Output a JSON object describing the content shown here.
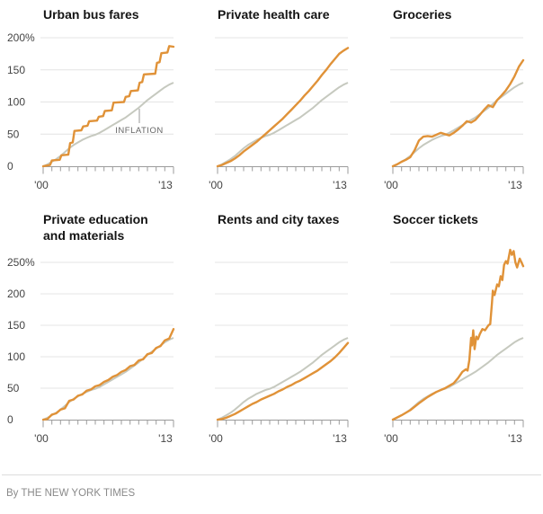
{
  "page": {
    "credit": "By THE NEW YORK TIMES"
  },
  "colors": {
    "background": "#ffffff",
    "category_line": "#e09238",
    "inflation_line": "#c6c9bf",
    "gridline": "#e4e4e4",
    "axis": "#9b9b9b",
    "callout_line": "#999999",
    "title_text": "#141414",
    "axis_label_text": "#444444",
    "annotation_text": "#666666",
    "credit_text": "#8a8a8a"
  },
  "chart_data": {
    "type": "line",
    "x_range": [
      2000,
      2015
    ],
    "x_tick_interval_years": 1,
    "x_tick_labels": [
      "'00",
      "'13"
    ],
    "grid": "horizontal-only",
    "legend": {
      "inflation_label": "INFLATION",
      "position": "annotation-in-first-chart"
    },
    "inflation_series": {
      "name": "INFLATION",
      "points": [
        [
          2000,
          0
        ],
        [
          2000.5,
          3
        ],
        [
          2001,
          7
        ],
        [
          2001.5,
          11
        ],
        [
          2002,
          16
        ],
        [
          2002.5,
          22
        ],
        [
          2003,
          28
        ],
        [
          2003.5,
          33
        ],
        [
          2004,
          37
        ],
        [
          2004.5,
          41
        ],
        [
          2005,
          44
        ],
        [
          2005.5,
          47
        ],
        [
          2006,
          49
        ],
        [
          2006.5,
          52
        ],
        [
          2007,
          56
        ],
        [
          2007.5,
          60
        ],
        [
          2008,
          64
        ],
        [
          2008.5,
          68
        ],
        [
          2009,
          72
        ],
        [
          2009.5,
          76
        ],
        [
          2010,
          81
        ],
        [
          2010.5,
          86
        ],
        [
          2011,
          91
        ],
        [
          2011.5,
          97
        ],
        [
          2012,
          103
        ],
        [
          2012.5,
          108
        ],
        [
          2013,
          113
        ],
        [
          2013.5,
          118
        ],
        [
          2014,
          123
        ],
        [
          2014.5,
          127
        ],
        [
          2015,
          130
        ]
      ]
    },
    "charts": [
      {
        "title_lines": [
          "Urban bus fares"
        ],
        "ymax": 200,
        "y_tick_step": 50,
        "y_tick_labels": [
          "200%",
          "150",
          "100",
          "50",
          "0"
        ],
        "annotation": "INFLATION",
        "series_points": [
          [
            2000,
            0
          ],
          [
            2000.8,
            2
          ],
          [
            2001,
            9
          ],
          [
            2001.9,
            10
          ],
          [
            2002.1,
            17
          ],
          [
            2002.9,
            18
          ],
          [
            2003.1,
            36
          ],
          [
            2003.4,
            37
          ],
          [
            2003.6,
            55
          ],
          [
            2004.4,
            56
          ],
          [
            2004.6,
            62
          ],
          [
            2005.1,
            63
          ],
          [
            2005.3,
            70
          ],
          [
            2006.2,
            71
          ],
          [
            2006.4,
            77
          ],
          [
            2006.9,
            78
          ],
          [
            2007.1,
            86
          ],
          [
            2007.9,
            87
          ],
          [
            2008.1,
            99
          ],
          [
            2009.3,
            100
          ],
          [
            2009.5,
            108
          ],
          [
            2009.9,
            109
          ],
          [
            2010.1,
            117
          ],
          [
            2010.9,
            118
          ],
          [
            2011.1,
            130
          ],
          [
            2011.4,
            131
          ],
          [
            2011.6,
            143
          ],
          [
            2012.9,
            144
          ],
          [
            2013.1,
            161
          ],
          [
            2013.4,
            162
          ],
          [
            2013.6,
            176
          ],
          [
            2014.3,
            177
          ],
          [
            2014.5,
            187
          ],
          [
            2015,
            186
          ]
        ]
      },
      {
        "title_lines": [
          "Private health care"
        ],
        "ymax": 200,
        "y_tick_step": 50,
        "y_tick_labels": [],
        "series_points": [
          [
            2000,
            0
          ],
          [
            2000.5,
            2
          ],
          [
            2001,
            5
          ],
          [
            2001.5,
            8
          ],
          [
            2002,
            12
          ],
          [
            2002.5,
            17
          ],
          [
            2003,
            23
          ],
          [
            2003.5,
            28
          ],
          [
            2004,
            33
          ],
          [
            2004.5,
            38
          ],
          [
            2005,
            44
          ],
          [
            2005.5,
            50
          ],
          [
            2006,
            56
          ],
          [
            2006.5,
            62
          ],
          [
            2007,
            68
          ],
          [
            2007.5,
            74
          ],
          [
            2008,
            81
          ],
          [
            2008.5,
            88
          ],
          [
            2009,
            95
          ],
          [
            2009.5,
            102
          ],
          [
            2010,
            110
          ],
          [
            2010.5,
            117
          ],
          [
            2011,
            125
          ],
          [
            2011.5,
            133
          ],
          [
            2012,
            142
          ],
          [
            2012.5,
            150
          ],
          [
            2013,
            159
          ],
          [
            2013.5,
            167
          ],
          [
            2014,
            175
          ],
          [
            2014.5,
            180
          ],
          [
            2015,
            184
          ]
        ]
      },
      {
        "title_lines": [
          "Groceries"
        ],
        "ymax": 200,
        "y_tick_step": 50,
        "y_tick_labels": [],
        "series_points": [
          [
            2000,
            0
          ],
          [
            2000.5,
            3
          ],
          [
            2001,
            7
          ],
          [
            2001.5,
            10
          ],
          [
            2002,
            14
          ],
          [
            2002.5,
            25
          ],
          [
            2003,
            40
          ],
          [
            2003.5,
            46
          ],
          [
            2004,
            47
          ],
          [
            2004.5,
            46
          ],
          [
            2005,
            49
          ],
          [
            2005.5,
            52
          ],
          [
            2006,
            50
          ],
          [
            2006.5,
            48
          ],
          [
            2007,
            52
          ],
          [
            2007.5,
            57
          ],
          [
            2008,
            63
          ],
          [
            2008.5,
            70
          ],
          [
            2009,
            68
          ],
          [
            2009.5,
            72
          ],
          [
            2010,
            80
          ],
          [
            2010.5,
            88
          ],
          [
            2011,
            95
          ],
          [
            2011.5,
            92
          ],
          [
            2012,
            103
          ],
          [
            2012.5,
            110
          ],
          [
            2013,
            118
          ],
          [
            2013.5,
            128
          ],
          [
            2014,
            140
          ],
          [
            2014.5,
            155
          ],
          [
            2015,
            165
          ]
        ]
      },
      {
        "title_lines": [
          "Private education",
          "and materials"
        ],
        "ymax": 250,
        "y_tick_step": 50,
        "y_tick_labels": [
          "250%",
          "200",
          "150",
          "100",
          "50",
          "0"
        ],
        "series_points": [
          [
            2000,
            0
          ],
          [
            2000.5,
            1
          ],
          [
            2001,
            8
          ],
          [
            2001.5,
            10
          ],
          [
            2002,
            16
          ],
          [
            2002.5,
            18
          ],
          [
            2003,
            30
          ],
          [
            2003.5,
            32
          ],
          [
            2004,
            38
          ],
          [
            2004.5,
            40
          ],
          [
            2005,
            46
          ],
          [
            2005.5,
            48
          ],
          [
            2006,
            53
          ],
          [
            2006.5,
            55
          ],
          [
            2007,
            60
          ],
          [
            2007.5,
            63
          ],
          [
            2008,
            68
          ],
          [
            2008.5,
            71
          ],
          [
            2009,
            76
          ],
          [
            2009.5,
            79
          ],
          [
            2010,
            85
          ],
          [
            2010.5,
            87
          ],
          [
            2011,
            94
          ],
          [
            2011.5,
            96
          ],
          [
            2012,
            104
          ],
          [
            2012.5,
            106
          ],
          [
            2013,
            114
          ],
          [
            2013.5,
            117
          ],
          [
            2014,
            126
          ],
          [
            2014.5,
            129
          ],
          [
            2015,
            144
          ]
        ]
      },
      {
        "title_lines": [
          "Rents and city taxes"
        ],
        "ymax": 250,
        "y_tick_step": 50,
        "y_tick_labels": [],
        "series_points": [
          [
            2000,
            0
          ],
          [
            2000.5,
            1
          ],
          [
            2001,
            3
          ],
          [
            2001.5,
            6
          ],
          [
            2002,
            9
          ],
          [
            2002.5,
            13
          ],
          [
            2003,
            17
          ],
          [
            2003.5,
            21
          ],
          [
            2004,
            25
          ],
          [
            2004.5,
            28
          ],
          [
            2005,
            32
          ],
          [
            2005.5,
            35
          ],
          [
            2006,
            38
          ],
          [
            2006.5,
            41
          ],
          [
            2007,
            45
          ],
          [
            2007.5,
            48
          ],
          [
            2008,
            52
          ],
          [
            2008.5,
            55
          ],
          [
            2009,
            59
          ],
          [
            2009.5,
            62
          ],
          [
            2010,
            66
          ],
          [
            2010.5,
            70
          ],
          [
            2011,
            74
          ],
          [
            2011.5,
            78
          ],
          [
            2012,
            83
          ],
          [
            2012.5,
            88
          ],
          [
            2013,
            93
          ],
          [
            2013.5,
            99
          ],
          [
            2014,
            106
          ],
          [
            2014.5,
            114
          ],
          [
            2015,
            122
          ]
        ]
      },
      {
        "title_lines": [
          "Soccer tickets"
        ],
        "ymax": 250,
        "y_tick_step": 50,
        "y_tick_labels": [],
        "series_points": [
          [
            2000,
            0
          ],
          [
            2001,
            7
          ],
          [
            2002,
            15
          ],
          [
            2003,
            26
          ],
          [
            2004,
            36
          ],
          [
            2005,
            44
          ],
          [
            2006,
            50
          ],
          [
            2007,
            58
          ],
          [
            2007.5,
            66
          ],
          [
            2008,
            76
          ],
          [
            2008.4,
            80
          ],
          [
            2008.6,
            78
          ],
          [
            2008.8,
            95
          ],
          [
            2009,
            130
          ],
          [
            2009.1,
            118
          ],
          [
            2009.25,
            142
          ],
          [
            2009.4,
            112
          ],
          [
            2009.6,
            132
          ],
          [
            2009.8,
            128
          ],
          [
            2010,
            136
          ],
          [
            2010.3,
            144
          ],
          [
            2010.6,
            142
          ],
          [
            2011,
            150
          ],
          [
            2011.2,
            152
          ],
          [
            2011.4,
            185
          ],
          [
            2011.5,
            205
          ],
          [
            2011.7,
            198
          ],
          [
            2012,
            215
          ],
          [
            2012.2,
            212
          ],
          [
            2012.4,
            228
          ],
          [
            2012.6,
            222
          ],
          [
            2012.8,
            246
          ],
          [
            2013,
            252
          ],
          [
            2013.2,
            248
          ],
          [
            2013.5,
            270
          ],
          [
            2013.7,
            262
          ],
          [
            2013.9,
            268
          ],
          [
            2014.1,
            250
          ],
          [
            2014.3,
            242
          ],
          [
            2014.6,
            256
          ],
          [
            2014.8,
            250
          ],
          [
            2015,
            244
          ]
        ]
      }
    ]
  }
}
